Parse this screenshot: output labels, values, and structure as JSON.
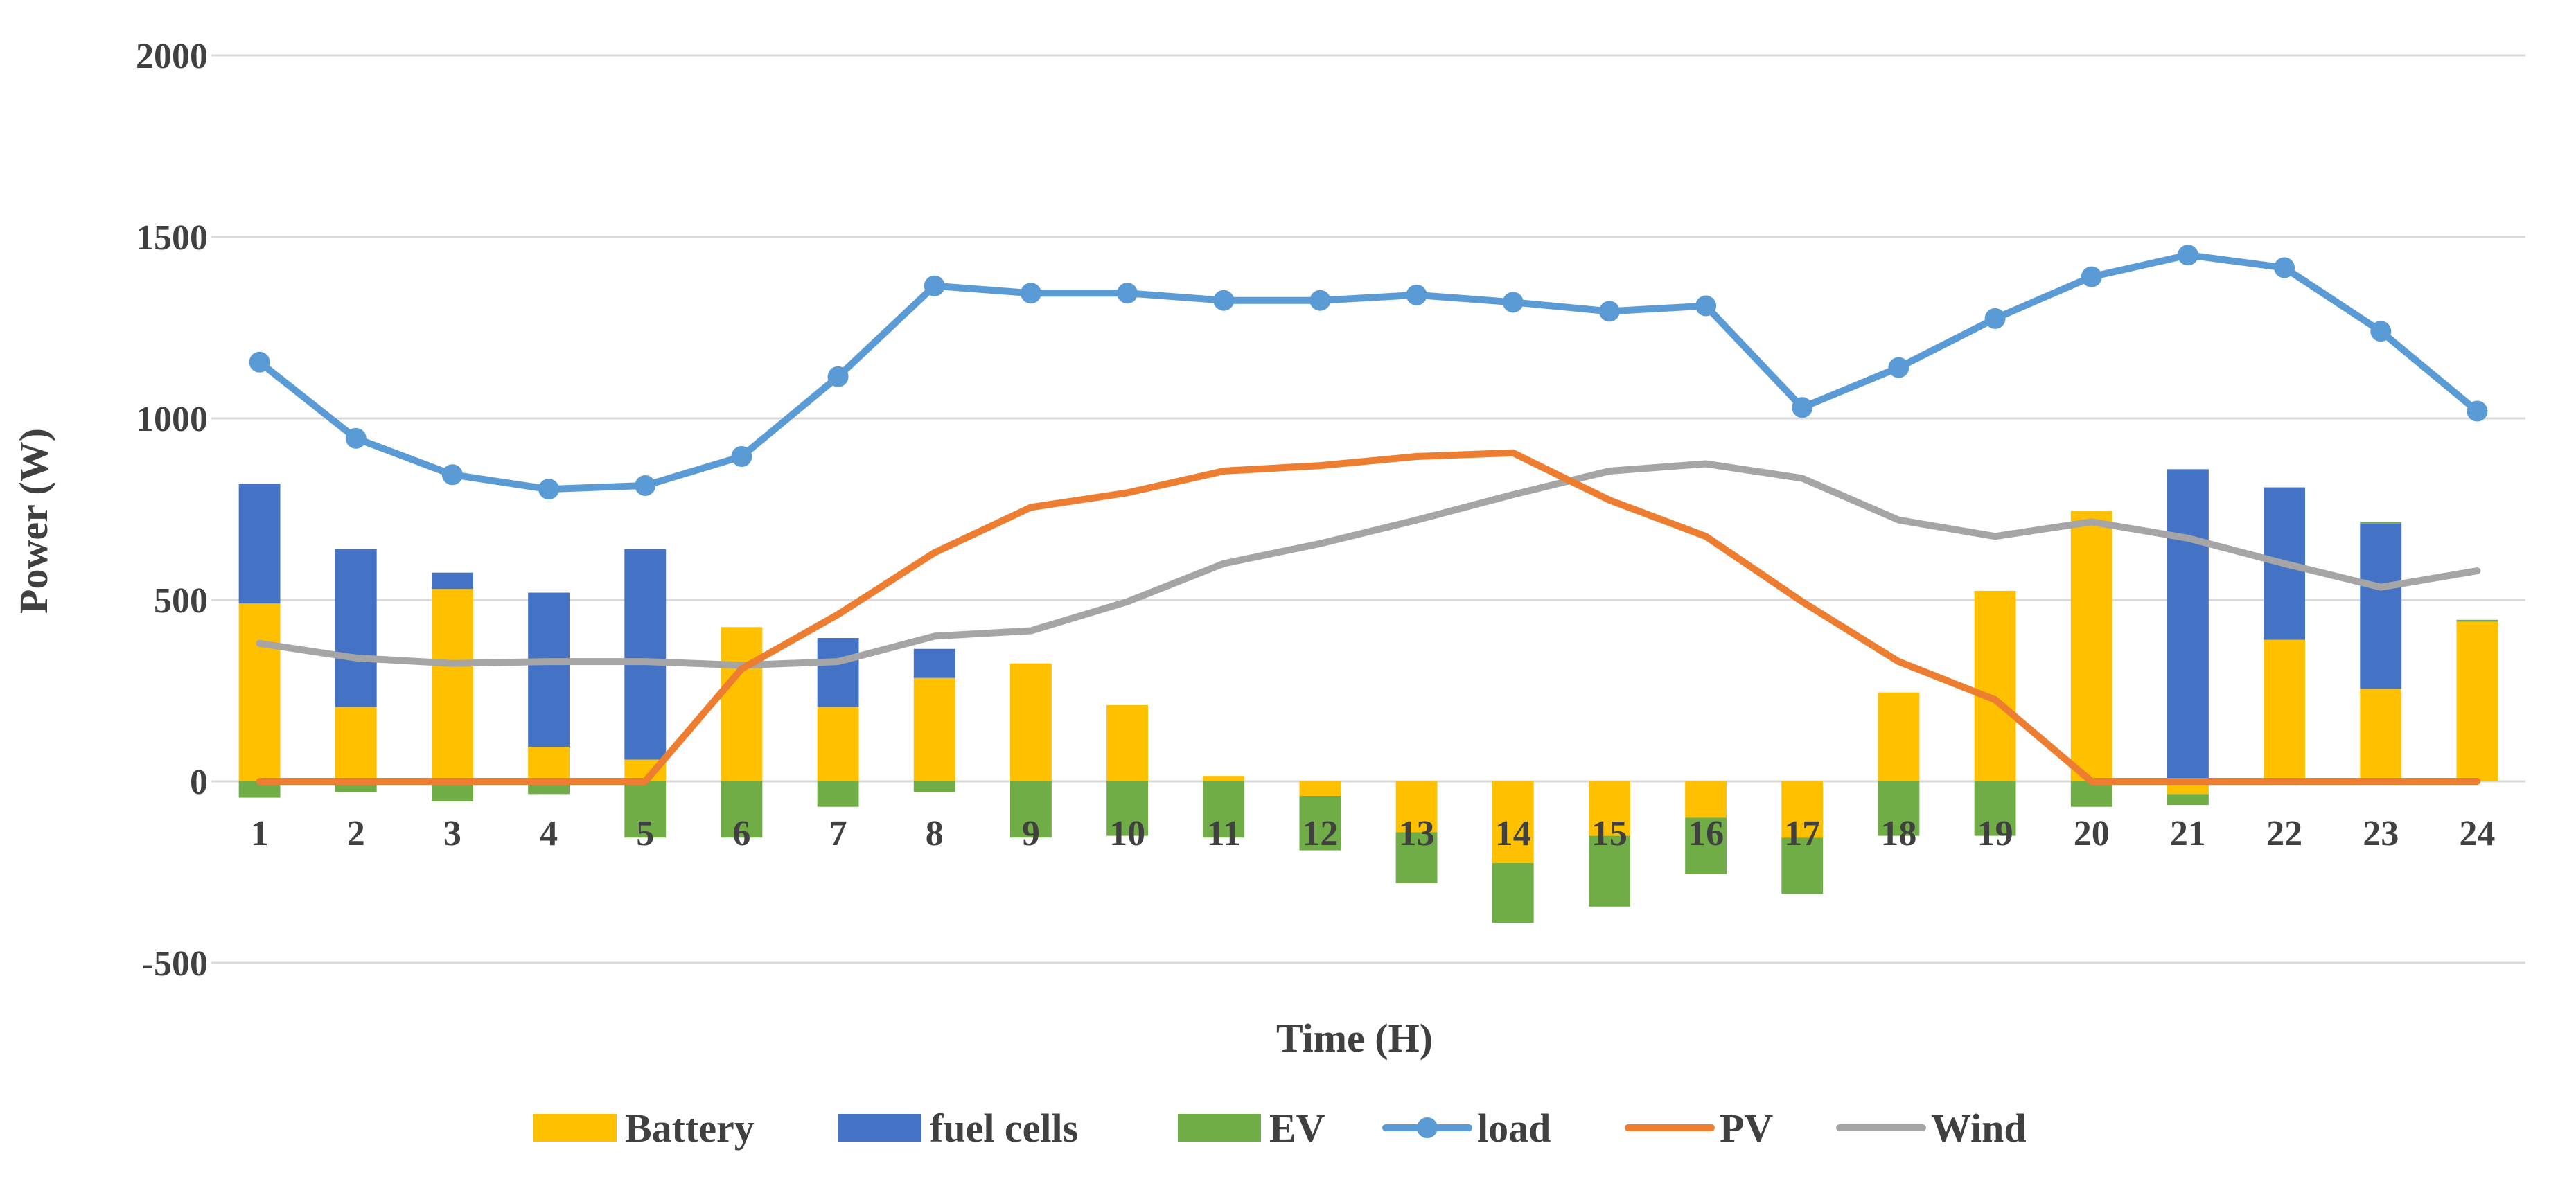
{
  "chart_data": {
    "type": "bar",
    "stacked": true,
    "title": "",
    "xlabel": "Time (H)",
    "ylabel": "Power (W)",
    "ylim": [
      -500,
      2000
    ],
    "yticks": [
      -500,
      0,
      500,
      1000,
      1500,
      2000
    ],
    "grid": true,
    "legend_position": "bottom",
    "categories": [
      "1",
      "2",
      "3",
      "4",
      "5",
      "6",
      "7",
      "8",
      "9",
      "10",
      "11",
      "12",
      "13",
      "14",
      "15",
      "16",
      "17",
      "18",
      "19",
      "20",
      "21",
      "22",
      "23",
      "24"
    ],
    "bar_series": [
      {
        "name": "Battery",
        "color": "#FFC000",
        "values": [
          490,
          205,
          530,
          95,
          60,
          425,
          205,
          285,
          325,
          210,
          15,
          -40,
          -140,
          -225,
          -150,
          -100,
          -155,
          245,
          525,
          745,
          -35,
          390,
          255,
          440
        ]
      },
      {
        "name": "fuel cells",
        "color": "#4472C4",
        "values": [
          330,
          435,
          45,
          425,
          580,
          0,
          190,
          80,
          0,
          0,
          0,
          0,
          0,
          0,
          0,
          0,
          0,
          0,
          0,
          0,
          860,
          420,
          455,
          0
        ]
      },
      {
        "name": "EV",
        "color": "#70AD47",
        "values": [
          -45,
          -30,
          -55,
          -35,
          -155,
          -155,
          -70,
          -30,
          -155,
          -150,
          -155,
          -150,
          -140,
          -165,
          -195,
          -155,
          -155,
          -150,
          -150,
          -70,
          -30,
          0,
          5,
          5
        ]
      }
    ],
    "line_series": [
      {
        "name": "load",
        "color": "#5B9BD5",
        "markers": true,
        "values": [
          1155,
          945,
          845,
          805,
          815,
          895,
          1115,
          1365,
          1345,
          1345,
          1325,
          1325,
          1340,
          1320,
          1295,
          1310,
          1030,
          1140,
          1275,
          1390,
          1450,
          1415,
          1240,
          1020
        ]
      },
      {
        "name": "PV",
        "color": "#ED7D31",
        "markers": false,
        "values": [
          0,
          0,
          0,
          0,
          0,
          310,
          460,
          630,
          755,
          795,
          855,
          870,
          895,
          905,
          775,
          675,
          495,
          330,
          225,
          0,
          0,
          0,
          0,
          0
        ]
      },
      {
        "name": "Wind",
        "color": "#A5A5A5",
        "markers": false,
        "values": [
          380,
          340,
          325,
          330,
          330,
          320,
          330,
          400,
          415,
          495,
          600,
          655,
          720,
          790,
          855,
          875,
          835,
          720,
          675,
          715,
          670,
          600,
          535,
          580
        ]
      }
    ],
    "legend": [
      "Battery",
      "fuel cells",
      "EV",
      "load",
      "PV",
      "Wind"
    ]
  }
}
